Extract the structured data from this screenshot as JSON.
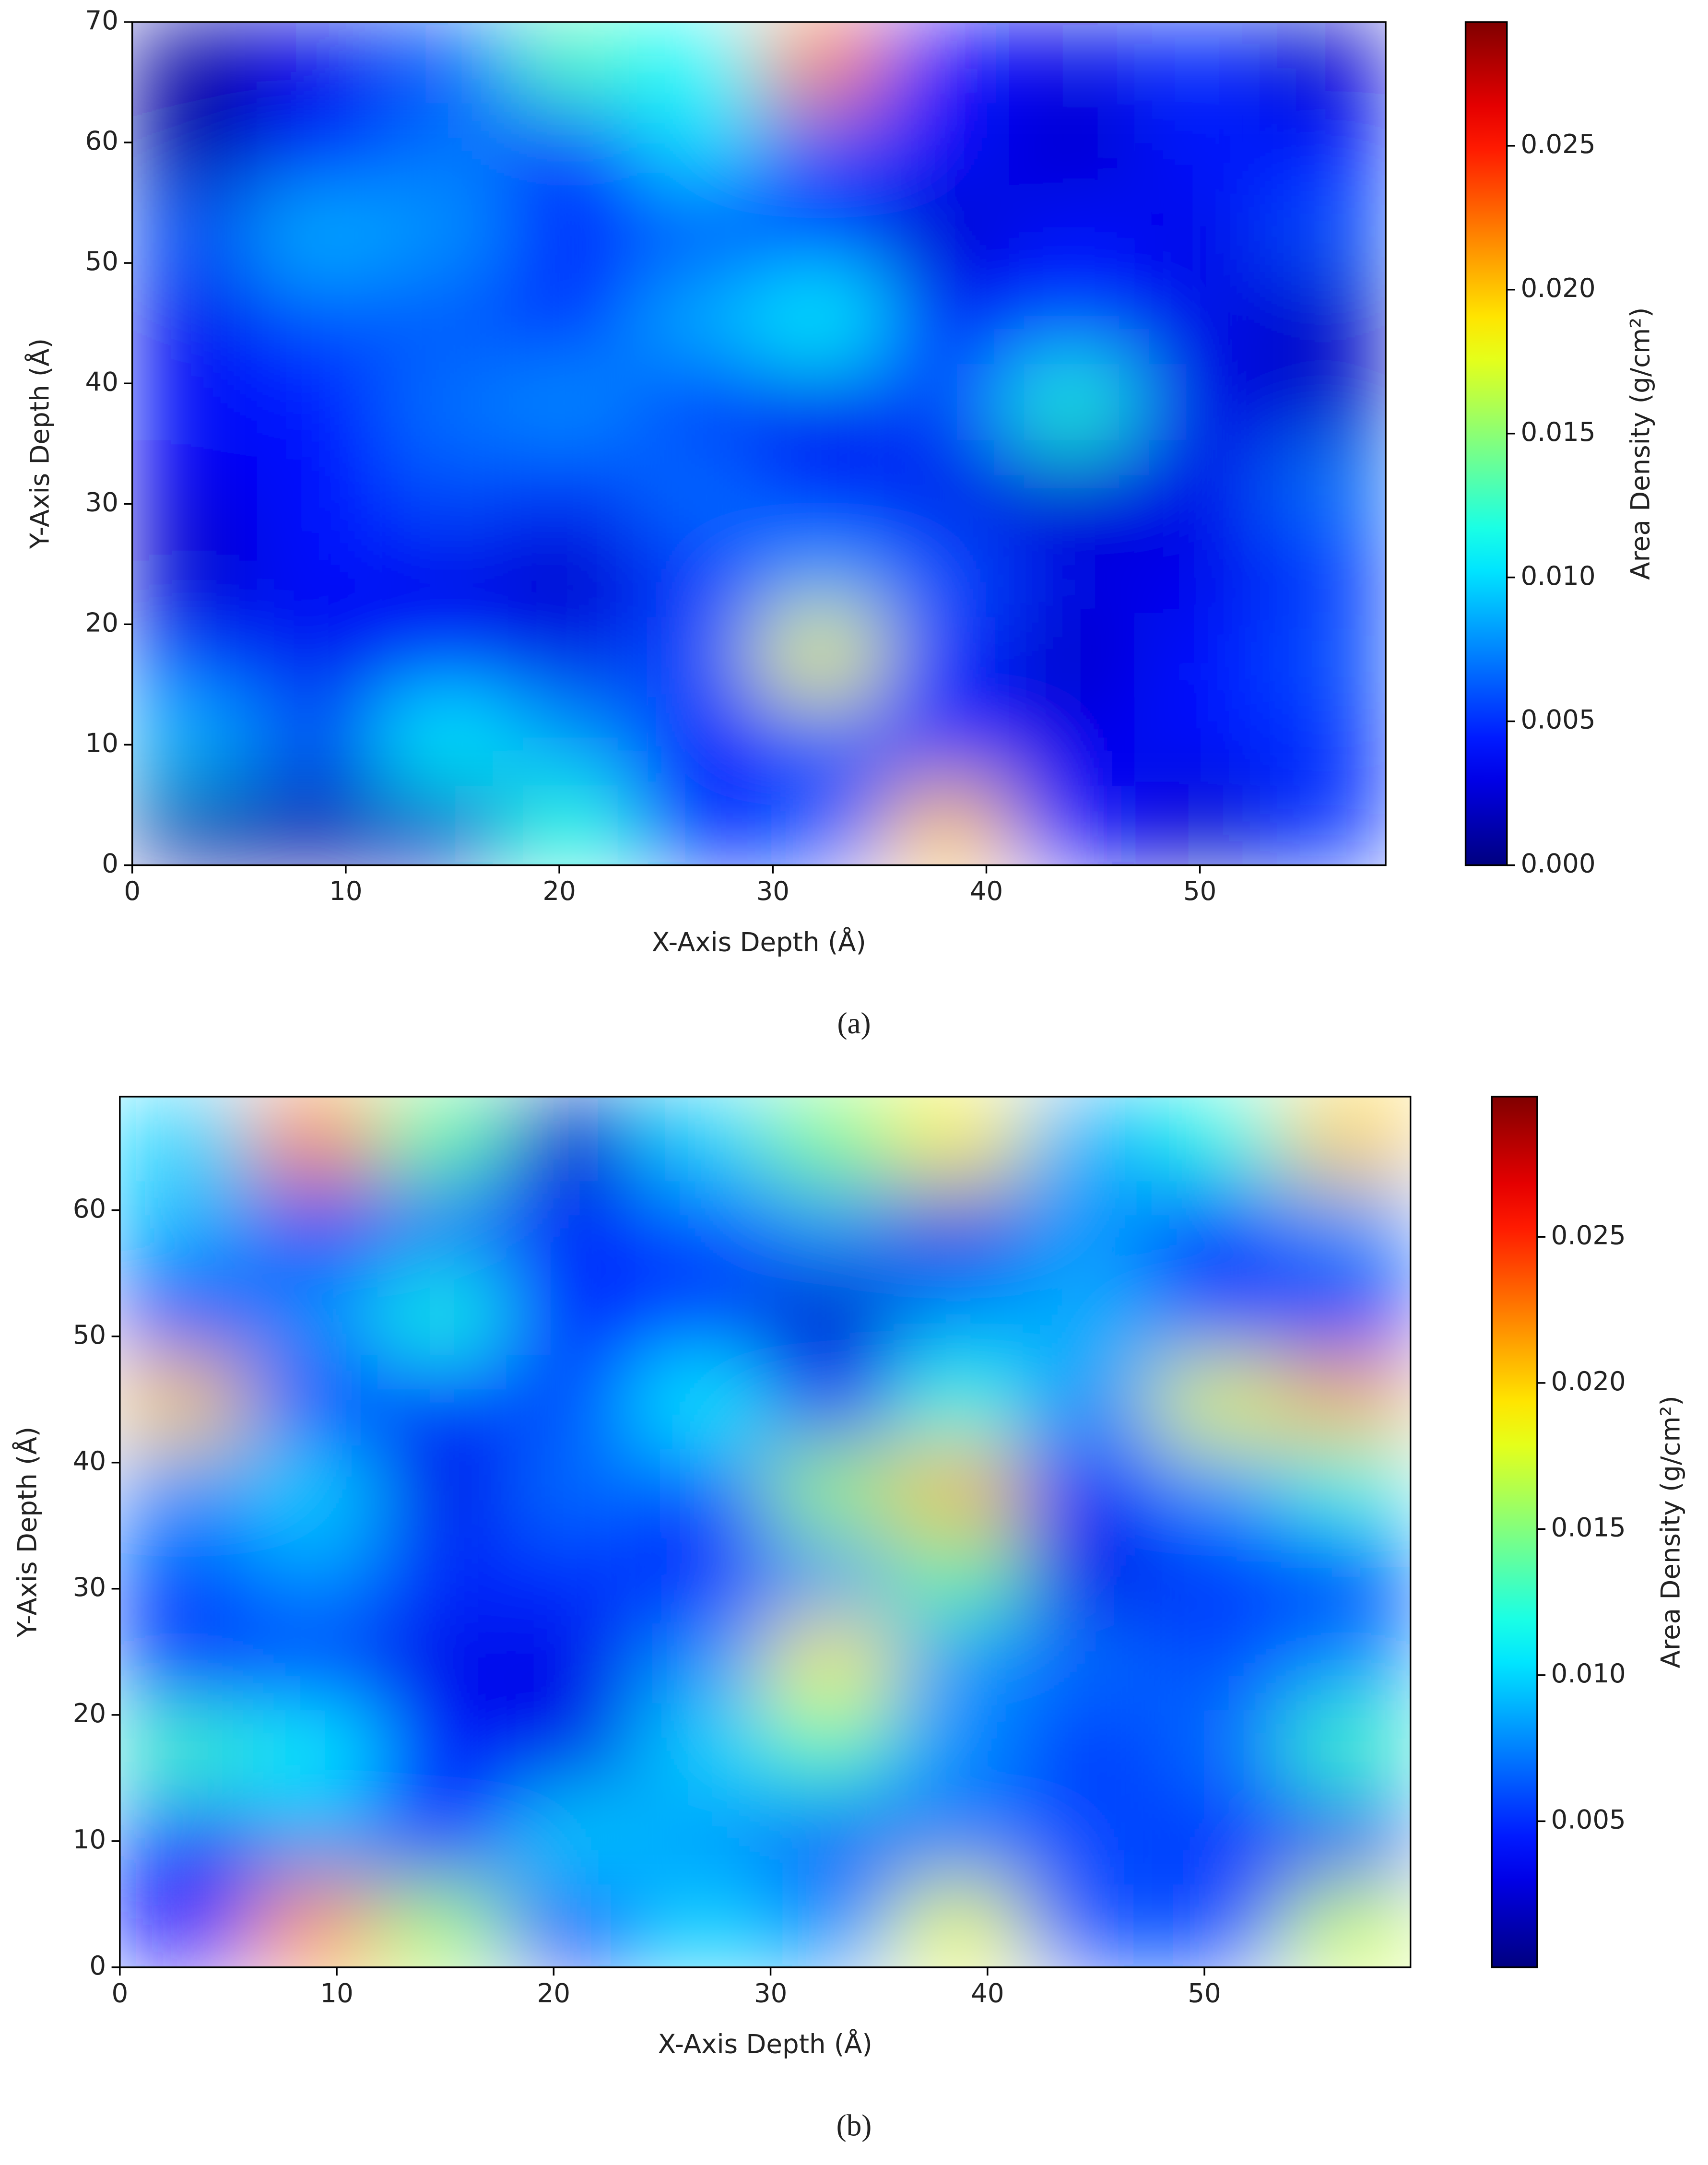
{
  "chart_data": [
    {
      "type": "heatmap",
      "xlabel": "X-Axis Depth (Å)",
      "ylabel": "Y-Axis Depth (Å)",
      "colorbar_label": "Area Density (g/cm²)",
      "caption": "(a)",
      "colormap": "jet",
      "xlim": [
        0,
        58.7
      ],
      "ylim": [
        0,
        70
      ],
      "xticks": [
        0,
        10,
        20,
        30,
        40,
        50
      ],
      "yticks": [
        0,
        10,
        20,
        30,
        40,
        50,
        60,
        70
      ],
      "clim": [
        0,
        0.0293
      ],
      "cticks": [
        {
          "value": 0,
          "label": "0.000"
        },
        0.005,
        {
          "value": 0.01,
          "label": "0.010"
        },
        0.015,
        {
          "value": 0.02,
          "label": "0.020"
        },
        0.025
      ],
      "z": [
        [
          0.001,
          0.001,
          0.002,
          0.012,
          0.004,
          0.006,
          0.02,
          0.004,
          0.002,
          0.005
        ],
        [
          0.009,
          0.006,
          0.011,
          0.008,
          0.004,
          0.006,
          0.004,
          0.003,
          0.004,
          0.005
        ],
        [
          0.005,
          0.003,
          0.004,
          0.003,
          0.006,
          0.018,
          0.005,
          0.002,
          0.004,
          0.006
        ],
        [
          0.002,
          0.004,
          0.003,
          0.002,
          0.005,
          0.008,
          0.006,
          0.003,
          0.003,
          0.005
        ],
        [
          0.003,
          0.004,
          0.006,
          0.005,
          0.007,
          0.004,
          0.003,
          0.002,
          0.003,
          0.007
        ],
        [
          0.004,
          0.004,
          0.007,
          0.008,
          0.004,
          0.003,
          0.006,
          0.012,
          0.003,
          0.002
        ],
        [
          0.003,
          0.006,
          0.006,
          0.004,
          0.009,
          0.011,
          0.004,
          0.005,
          0.003,
          0.002
        ],
        [
          0.006,
          0.009,
          0.008,
          0.005,
          0.004,
          0.005,
          0.002,
          0.004,
          0.003,
          0.006
        ],
        [
          0.001,
          0.004,
          0.007,
          0.004,
          0.01,
          0.006,
          0.004,
          0.002,
          0.004,
          0.004
        ],
        [
          0.001,
          0.003,
          0.006,
          0.013,
          0.011,
          0.022,
          0.004,
          0.003,
          0.005,
          0.002
        ]
      ]
    },
    {
      "type": "heatmap",
      "xlabel": "X-Axis Depth (Å)",
      "ylabel": "Y-Axis Depth (Å)",
      "colorbar_label": "Area Density (g/cm²)",
      "caption": "(b)",
      "colormap": "jet",
      "xlim": [
        0,
        59.5
      ],
      "ylim": [
        0,
        69
      ],
      "xticks": [
        0,
        10,
        20,
        30,
        40,
        50
      ],
      "yticks": [
        0,
        10,
        20,
        30,
        40,
        50,
        60
      ],
      "clim": [
        0,
        0.0298
      ],
      "cticks": [
        0.005,
        {
          "value": 0.01,
          "label": "0.010"
        },
        0.015,
        {
          "value": 0.02,
          "label": "0.020"
        },
        0.025
      ],
      "z": [
        [
          0.004,
          0.022,
          0.016,
          0.004,
          0.01,
          0.008,
          0.018,
          0.006,
          0.006,
          0.017
        ],
        [
          0.005,
          0.008,
          0.004,
          0.01,
          0.008,
          0.006,
          0.007,
          0.006,
          0.005,
          0.004
        ],
        [
          0.013,
          0.011,
          0.004,
          0.003,
          0.01,
          0.013,
          0.008,
          0.005,
          0.007,
          0.013
        ],
        [
          0.004,
          0.004,
          0.003,
          0.003,
          0.008,
          0.019,
          0.008,
          0.007,
          0.006,
          0.008
        ],
        [
          0.006,
          0.008,
          0.005,
          0.005,
          0.004,
          0.008,
          0.014,
          0.003,
          0.005,
          0.004
        ],
        [
          0.008,
          0.01,
          0.003,
          0.007,
          0.006,
          0.016,
          0.021,
          0.004,
          0.008,
          0.012
        ],
        [
          0.02,
          0.005,
          0.004,
          0.006,
          0.011,
          0.004,
          0.012,
          0.008,
          0.018,
          0.021
        ],
        [
          0.004,
          0.008,
          0.012,
          0.004,
          0.005,
          0.002,
          0.008,
          0.009,
          0.006,
          0.004
        ],
        [
          0.009,
          0.005,
          0.006,
          0.005,
          0.006,
          0.008,
          0.003,
          0.008,
          0.004,
          0.008
        ],
        [
          0.01,
          0.022,
          0.014,
          0.002,
          0.01,
          0.015,
          0.019,
          0.009,
          0.012,
          0.02
        ]
      ]
    }
  ]
}
